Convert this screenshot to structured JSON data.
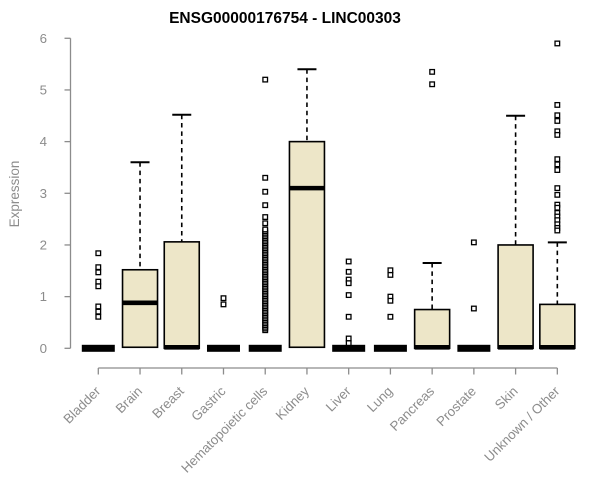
{
  "chart_data": {
    "type": "boxplot",
    "title": "ENSG00000176754 - LINC00303",
    "ylabel": "Expression",
    "xlabel": "",
    "ylim": [
      0,
      6
    ],
    "yticks": [
      0,
      1,
      2,
      3,
      4,
      5,
      6
    ],
    "grid": false,
    "legend": "none",
    "colors": {
      "box_fill": "#EDE6C8",
      "box_stroke": "#000000",
      "median": "#000000",
      "axis": "#8C8C8C",
      "tick_label": "#8C8C8C",
      "title": "#000000"
    },
    "categories": [
      "Bladder",
      "Brain",
      "Breast",
      "Gastric",
      "Hematopoietic cells",
      "Kidney",
      "Liver",
      "Lung",
      "Pancreas",
      "Prostate",
      "Skin",
      "Unknown / Other"
    ],
    "boxes": [
      {
        "category": "Bladder",
        "q1": 0,
        "median": 0,
        "q3": 0,
        "whisker_low": 0,
        "whisker_high": 0,
        "outliers": [
          1.84,
          1.57,
          1.47,
          1.29,
          1.2,
          0.81,
          0.71,
          0.61
        ]
      },
      {
        "category": "Brain",
        "q1": 0.02,
        "median": 0.88,
        "q3": 1.52,
        "whisker_low": 0,
        "whisker_high": 3.6,
        "outliers": []
      },
      {
        "category": "Breast",
        "q1": 0,
        "median": 0.02,
        "q3": 2.06,
        "whisker_low": 0,
        "whisker_high": 4.52,
        "outliers": []
      },
      {
        "category": "Gastric",
        "q1": 0,
        "median": 0,
        "q3": 0,
        "whisker_low": 0,
        "whisker_high": 0,
        "outliers": [
          0.97,
          0.85
        ]
      },
      {
        "category": "Hematopoietic cells",
        "q1": 0,
        "median": 0,
        "q3": 0,
        "whisker_low": 0,
        "whisker_high": 0,
        "outliers": [
          5.2,
          3.3,
          3.03,
          2.77,
          2.54,
          2.42
        ],
        "outlier_range": {
          "from": 0.35,
          "to": 2.3,
          "count": 60
        }
      },
      {
        "category": "Kidney",
        "q1": 0.02,
        "median": 3.1,
        "q3": 4.0,
        "whisker_low": 0,
        "whisker_high": 5.4,
        "outliers": []
      },
      {
        "category": "Liver",
        "q1": 0,
        "median": 0,
        "q3": 0,
        "whisker_low": 0,
        "whisker_high": 0,
        "outliers": [
          1.68,
          1.48,
          1.33,
          1.26,
          1.03,
          0.61,
          0.19,
          0.1
        ]
      },
      {
        "category": "Lung",
        "q1": 0,
        "median": 0,
        "q3": 0,
        "whisker_low": 0,
        "whisker_high": 0,
        "outliers": [
          1.51,
          1.42,
          1.0,
          0.92,
          0.61
        ]
      },
      {
        "category": "Pancreas",
        "q1": 0,
        "median": 0.02,
        "q3": 0.75,
        "whisker_low": 0,
        "whisker_high": 1.65,
        "outliers": [
          5.35,
          5.11
        ]
      },
      {
        "category": "Prostate",
        "q1": 0,
        "median": 0,
        "q3": 0,
        "whisker_low": 0,
        "whisker_high": 0,
        "outliers": [
          2.05,
          0.77
        ]
      },
      {
        "category": "Skin",
        "q1": 0,
        "median": 0.02,
        "q3": 2.0,
        "whisker_low": 0,
        "whisker_high": 4.5,
        "outliers": []
      },
      {
        "category": "Unknown / Other",
        "q1": 0,
        "median": 0.02,
        "q3": 0.85,
        "whisker_low": 0,
        "whisker_high": 2.05,
        "outliers": [
          5.9,
          4.71,
          4.51,
          4.4,
          4.2,
          4.13,
          3.66,
          3.56,
          3.45,
          3.1,
          2.97,
          2.78,
          2.72,
          2.62,
          2.55,
          2.48,
          2.4,
          2.33,
          2.28
        ]
      }
    ]
  }
}
